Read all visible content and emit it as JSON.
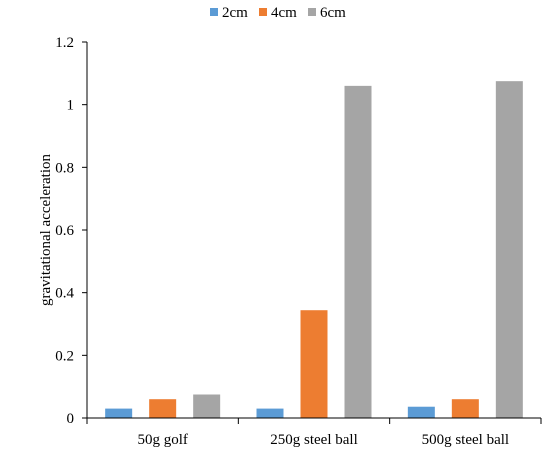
{
  "chart_data": {
    "type": "bar",
    "title": "",
    "xlabel": "",
    "ylabel": "gravitational acceleration",
    "categories": [
      "50g golf",
      "250g steel ball",
      "500g steel ball"
    ],
    "series": [
      {
        "name": "2cm",
        "color": "#5b9bd5",
        "values": [
          0.03,
          0.03,
          0.036
        ]
      },
      {
        "name": "4cm",
        "color": "#ed7d31",
        "values": [
          0.06,
          0.344,
          0.06
        ]
      },
      {
        "name": "6cm",
        "color": "#a5a5a5",
        "values": [
          0.075,
          1.06,
          1.075
        ]
      }
    ],
    "ylim": [
      0,
      1.2
    ],
    "yticks": [
      "0",
      "0.2",
      "0.4",
      "0.6",
      "0.8",
      "1",
      "1.2"
    ],
    "grid": false,
    "legend_position": "top-center"
  }
}
